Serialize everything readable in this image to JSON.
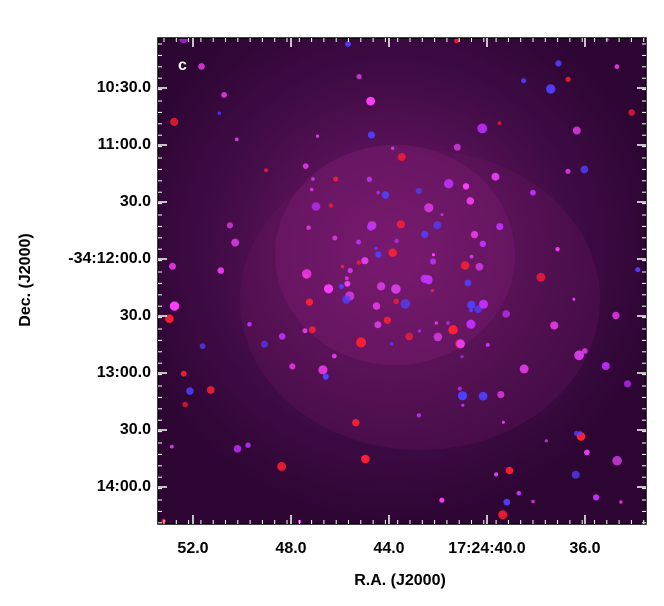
{
  "panel": {
    "label": "c"
  },
  "x_axis": {
    "title": "R.A. (J2000)",
    "ticks": [
      "52.0",
      "48.0",
      "44.0",
      "17:24:40.0",
      "36.0"
    ]
  },
  "y_axis": {
    "title": "Dec. (J2000)",
    "ticks": [
      "10:30.0",
      "11:00.0",
      "30.0",
      "-34:12:00.0",
      "30.0",
      "13:00.0",
      "30.0",
      "14:00.0"
    ]
  }
}
